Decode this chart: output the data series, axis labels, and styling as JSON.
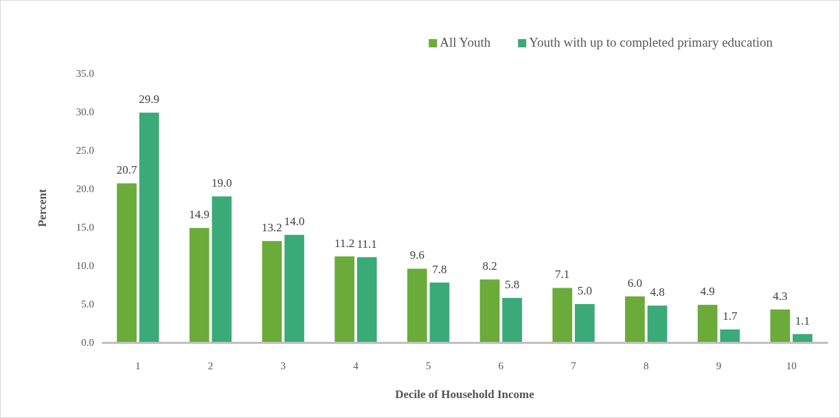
{
  "chart_data": {
    "type": "bar",
    "xlabel": "Decile of Household Income",
    "ylabel": "Percent",
    "categories": [
      "1",
      "2",
      "3",
      "4",
      "5",
      "6",
      "7",
      "8",
      "9",
      "10"
    ],
    "series": [
      {
        "name": "All Youth",
        "color": "#6aab3a",
        "values": [
          20.7,
          14.9,
          13.2,
          11.2,
          9.6,
          8.2,
          7.1,
          6.0,
          4.9,
          4.3
        ],
        "value_labels": [
          "20.7",
          "14.9",
          "13.2",
          "11.2",
          "9.6",
          "8.2",
          "7.1",
          "6.0",
          "4.9",
          "4.3"
        ]
      },
      {
        "name": "Youth with up to completed primary education",
        "color": "#3aaa78",
        "values": [
          29.9,
          19.0,
          14.0,
          11.1,
          7.8,
          5.8,
          5.0,
          4.8,
          1.7,
          1.1
        ],
        "value_labels": [
          "29.9",
          "19.0",
          "14.0",
          "11.1",
          "7.8",
          "5.8",
          "5.0",
          "4.8",
          "1.7",
          "1.1"
        ]
      }
    ],
    "ylim": [
      0,
      35
    ],
    "yticks": [
      {
        "value": 0,
        "label": "0.0"
      },
      {
        "value": 5,
        "label": "5.0"
      },
      {
        "value": 10,
        "label": "10.0"
      },
      {
        "value": 15,
        "label": "15.0"
      },
      {
        "value": 20,
        "label": "20.0"
      },
      {
        "value": 25,
        "label": "25.0"
      },
      {
        "value": 30,
        "label": "30.0"
      },
      {
        "value": 35,
        "label": "35.0"
      }
    ],
    "grid": false,
    "legend": "top right"
  }
}
